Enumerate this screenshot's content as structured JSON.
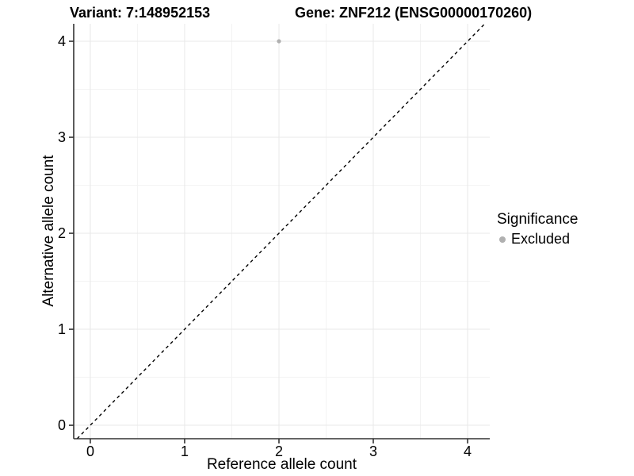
{
  "titles": {
    "variant": "Variant: 7:148952153",
    "gene": "Gene: ZNF212 (ENSG00000170260)"
  },
  "axes": {
    "x_label": "Reference allele count",
    "y_label": "Alternative allele count"
  },
  "legend": {
    "title": "Significance",
    "items": [
      {
        "label": "Excluded",
        "color": "#b0b0b0"
      }
    ]
  },
  "chart_data": {
    "type": "scatter",
    "title_left": "Variant: 7:148952153",
    "title_right": "Gene: ZNF212 (ENSG00000170260)",
    "xlabel": "Reference allele count",
    "ylabel": "Alternative allele count",
    "xlim": [
      -0.176,
      4.235
    ],
    "ylim": [
      -0.14,
      4.182
    ],
    "x_ticks": [
      0,
      1,
      2,
      3,
      4
    ],
    "y_ticks": [
      0,
      1,
      2,
      3,
      4
    ],
    "x_minor_ticks": [
      0.5,
      1.5,
      2.5,
      3.5
    ],
    "y_minor_ticks": [
      0.5,
      1.5,
      2.5,
      3.5
    ],
    "grid": true,
    "legend_position": "right",
    "series": [
      {
        "name": "Excluded",
        "color": "#b0b0b0",
        "points": [
          {
            "x": 2,
            "y": 4
          }
        ]
      }
    ],
    "reference_line": {
      "kind": "identity",
      "equation": "y = x",
      "style": "dashed",
      "color": "#000000"
    },
    "style_colors": {
      "grid_major": "#e8e8e8",
      "grid_minor": "#f3f3f3",
      "axis_line": "#333333",
      "tick_mark": "#333333",
      "tick_label": "#000000"
    }
  }
}
